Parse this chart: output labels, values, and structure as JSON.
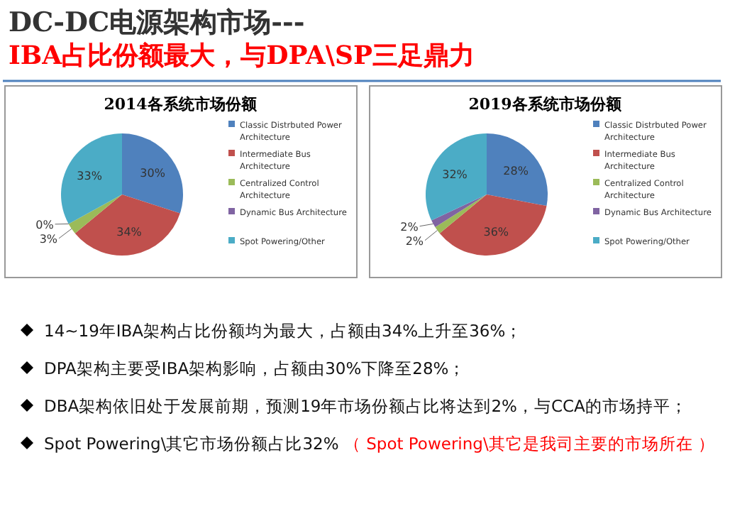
{
  "chart_data": [
    {
      "type": "other",
      "title": "DC-DC电源架构市场---",
      "subtitle": "IBA占比份额最大，与DPA\\SP三足鼎力"
    },
    {
      "type": "pie",
      "title": "2014各系统市场份额",
      "categories": [
        "Classic Distrbuted Power Architecture",
        "Intermediate Bus Architecture",
        "Centralized Control Architecture",
        "Dynamic Bus Architecture",
        "Spot Powering/Other"
      ],
      "values": [
        30,
        34,
        3,
        0,
        33
      ],
      "value_labels": [
        "30%",
        "34%",
        "3%",
        "0%",
        "33%"
      ],
      "colors": [
        "#4f81bd",
        "#c0504d",
        "#9bbb59",
        "#8064a2",
        "#4bacc6"
      ],
      "legend": "right"
    },
    {
      "type": "pie",
      "title": "2019各系统市场份额",
      "categories": [
        "Classic Distrbuted Power Architecture",
        "Intermediate Bus Architecture",
        "Centralized Control Architecture",
        "Dynamic Bus Architecture",
        "Spot Powering/Other"
      ],
      "values": [
        28,
        36,
        2,
        2,
        32
      ],
      "value_labels": [
        "28%",
        "36%",
        "2%",
        "2%",
        "32%"
      ],
      "colors": [
        "#4f81bd",
        "#c0504d",
        "#9bbb59",
        "#8064a2",
        "#4bacc6"
      ],
      "legend": "right"
    },
    {
      "type": "other",
      "annotations": [
        "14~19年IBA架构占比份额均为最大，占额由34%上升至36%；",
        "DPA架构主要受IBA架构影响，占额由30%下降至28%；",
        "DBA架构依旧处于发展前期，预测19年市场份额占比将达到2%，与CCA的市场持平；",
        "Spot Powering\\其它市场份额占比32%",
        "（ Spot Powering\\其它是我司主要的市场所在 ）"
      ]
    }
  ]
}
